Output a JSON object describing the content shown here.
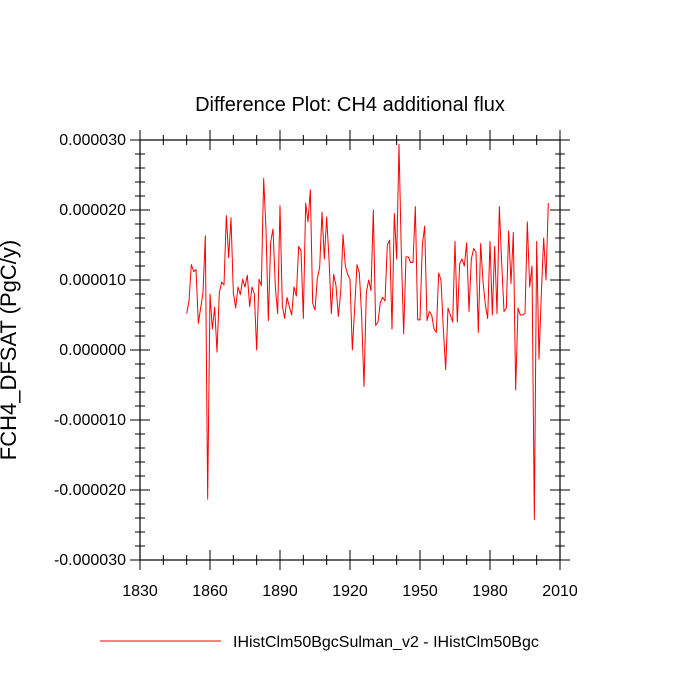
{
  "chart_data": {
    "type": "line",
    "title": "Difference Plot: CH4 additional flux",
    "xlabel": "",
    "ylabel": "FCH4_DFSAT  (PgC/y)",
    "xlim": [
      1830,
      2010
    ],
    "ylim": [
      -3e-05,
      3e-05
    ],
    "x_ticks": [
      1830,
      1860,
      1890,
      1920,
      1950,
      1980,
      2010
    ],
    "y_ticks": [
      -3e-05,
      -2e-05,
      -1e-05,
      0,
      1e-05,
      2e-05,
      3e-05
    ],
    "x_tick_labels": [
      "1830",
      "1860",
      "1890",
      "1920",
      "1950",
      "1980",
      "2010"
    ],
    "y_tick_labels": [
      "-0.000030",
      "-0.000020",
      "-0.000010",
      "0.000000",
      "0.000010",
      "0.000020",
      "0.000030"
    ],
    "grid": false,
    "legend": "bottom",
    "series": [
      {
        "name": "IHistClm50BgcSulman_v2 - IHistClm50Bgc",
        "color": "#ff0000",
        "x_start": 1850,
        "x_step": 1,
        "values": [
          5.2e-06,
          7e-06,
          1.22e-05,
          1.12e-05,
          1.15e-05,
          3.8e-06,
          6e-06,
          8.2e-06,
          1.63e-05,
          -2.13e-05,
          8e-06,
          3e-06,
          6.1e-06,
          -3e-07,
          8.2e-06,
          9.7e-06,
          9.3e-06,
          1.92e-05,
          1.32e-05,
          1.89e-05,
          8.2e-06,
          6e-06,
          9e-06,
          7.9e-06,
          1.01e-05,
          9e-06,
          1.07e-05,
          6.2e-06,
          9e-06,
          8e-06,
          0.0,
          1.01e-05,
          9.2e-06,
          2.45e-05,
          1.72e-05,
          4.2e-06,
          1.54e-05,
          1.73e-05,
          9e-06,
          5.2e-06,
          2.06e-05,
          6.3e-06,
          4.5e-06,
          7.5e-06,
          6.2e-06,
          5e-06,
          9e-06,
          7.7e-06,
          1.48e-05,
          1.42e-05,
          4.5e-06,
          2.1e-05,
          1.83e-05,
          2.29e-05,
          6.7e-06,
          5.7e-06,
          1.02e-05,
          1.18e-05,
          1.97e-05,
          1.3e-05,
          1.9e-05,
          1.3e-05,
          5.2e-06,
          1.08e-05,
          9.2e-06,
          4.8e-06,
          8.2e-06,
          1.65e-05,
          1.2e-05,
          1.08e-05,
          1.01e-05,
          0.0,
          6e-06,
          1.22e-05,
          1.1e-05,
          4.8e-06,
          -5.2e-06,
          8.2e-06,
          1e-05,
          8.5e-06,
          2e-05,
          3.5e-06,
          4e-06,
          6.8e-06,
          7.5e-06,
          7e-06,
          1.5e-05,
          1.57e-05,
          3e-06,
          1.95e-05,
          1.3e-05,
          2.94e-05,
          1.37e-05,
          2.3e-06,
          1.33e-05,
          1.33e-05,
          1.25e-05,
          1.25e-05,
          2.05e-05,
          4.3e-06,
          4.3e-06,
          1.5e-05,
          1.77e-05,
          4.2e-06,
          5.5e-06,
          5e-06,
          3e-06,
          2.5e-06,
          1.1e-05,
          1e-05,
          3e-06,
          -2.8e-06,
          6e-06,
          5e-06,
          4e-06,
          1.55e-05,
          4e-06,
          1.23e-05,
          1.3e-05,
          1.2e-05,
          1.53e-05,
          5.5e-06,
          1.3e-05,
          1.45e-05,
          1.4e-05,
          2.5e-06,
          1.52e-05,
          9.8e-06,
          6.5e-06,
          4.5e-06,
          1.55e-05,
          5e-06,
          1.48e-05,
          5.2e-06,
          2.05e-05,
          1.25e-05,
          5.5e-06,
          6e-06,
          1.7e-05,
          9.5e-06,
          1.68e-05,
          -5.7e-06,
          6e-06,
          5e-06,
          5e-06,
          5.2e-06,
          1.83e-05,
          9e-06,
          1.2e-05,
          -2.42e-05,
          1.55e-05,
          -1.3e-06,
          8e-06,
          1.6e-05,
          1e-05,
          2.1e-05
        ]
      }
    ]
  }
}
